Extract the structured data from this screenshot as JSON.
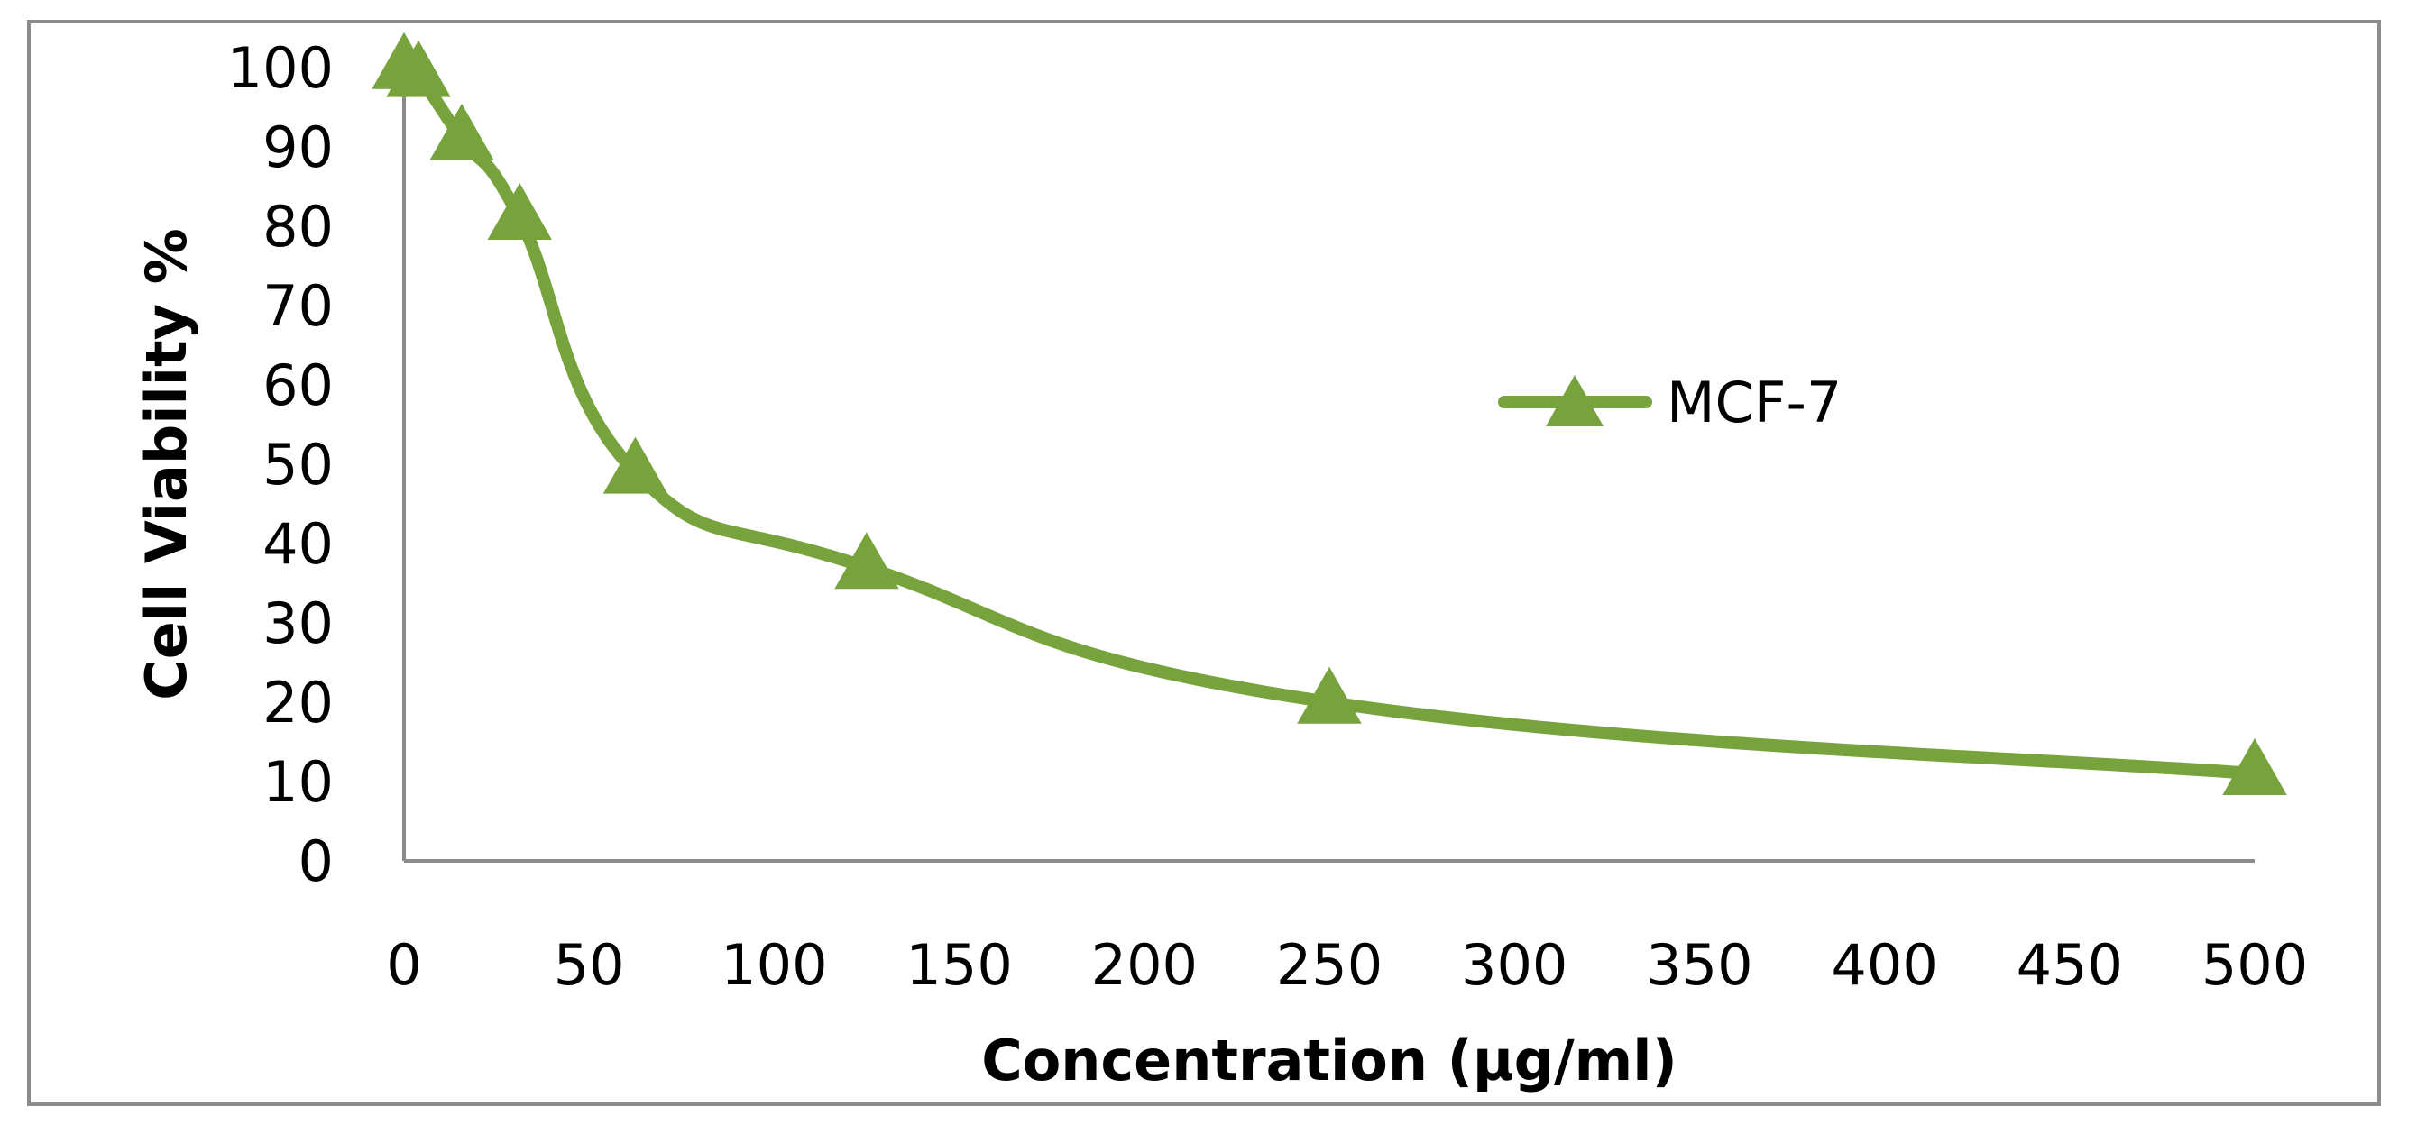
{
  "chart_data": {
    "type": "line",
    "title": "",
    "xlabel": "Concentration (µg/ml)",
    "ylabel": "Cell  Viability  %",
    "xlim": [
      0,
      500
    ],
    "ylim": [
      0,
      100
    ],
    "x_ticks": [
      "0",
      "50",
      "100",
      "150",
      "200",
      "250",
      "300",
      "350",
      "400",
      "450",
      "500"
    ],
    "y_ticks": [
      "0",
      "10",
      "20",
      "30",
      "40",
      "50",
      "60",
      "70",
      "80",
      "90",
      "100"
    ],
    "grid": false,
    "legend_position": "right",
    "series": [
      {
        "name": "MCF-7",
        "color": "#77a33d",
        "marker": "triangle",
        "smooth": true,
        "x": [
          0,
          3.9,
          15.6,
          31.25,
          62.5,
          125,
          250,
          500
        ],
        "y": [
          100,
          99,
          91,
          81,
          49,
          37,
          20,
          11
        ]
      }
    ]
  }
}
